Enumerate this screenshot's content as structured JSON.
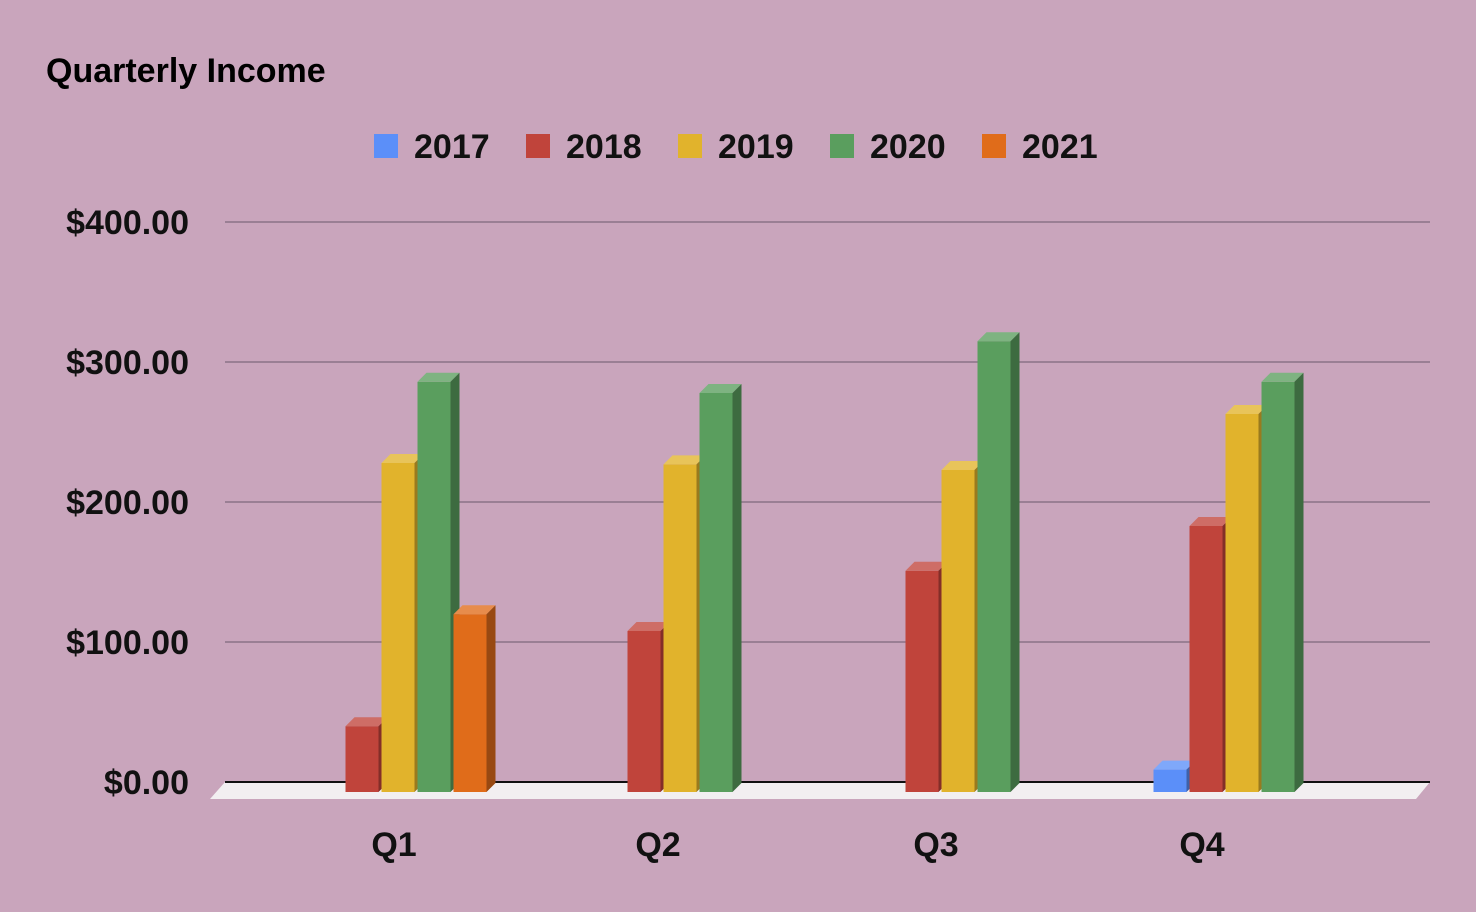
{
  "chart_data": {
    "type": "bar",
    "style": "3d",
    "title": "Quarterly Income",
    "xlabel": "",
    "ylabel": "",
    "categories": [
      "Q1",
      "Q2",
      "Q3",
      "Q4"
    ],
    "series": [
      {
        "name": "2017",
        "color": "#5b8ff9",
        "values": [
          0,
          0,
          0,
          16
        ]
      },
      {
        "name": "2018",
        "color": "#c0443b",
        "values": [
          47,
          115,
          158,
          190
        ]
      },
      {
        "name": "2019",
        "color": "#e1b32c",
        "values": [
          235,
          234,
          230,
          270
        ]
      },
      {
        "name": "2020",
        "color": "#5a9e5e",
        "values": [
          293,
          285,
          322,
          293
        ]
      },
      {
        "name": "2021",
        "color": "#e06c1a",
        "values": [
          127,
          0,
          0,
          0
        ]
      }
    ],
    "ylim": [
      0,
      400
    ],
    "y_ticks": [
      "$0.00",
      "$100.00",
      "$200.00",
      "$300.00",
      "$400.00"
    ],
    "grid": true,
    "legend_position": "top-center"
  }
}
